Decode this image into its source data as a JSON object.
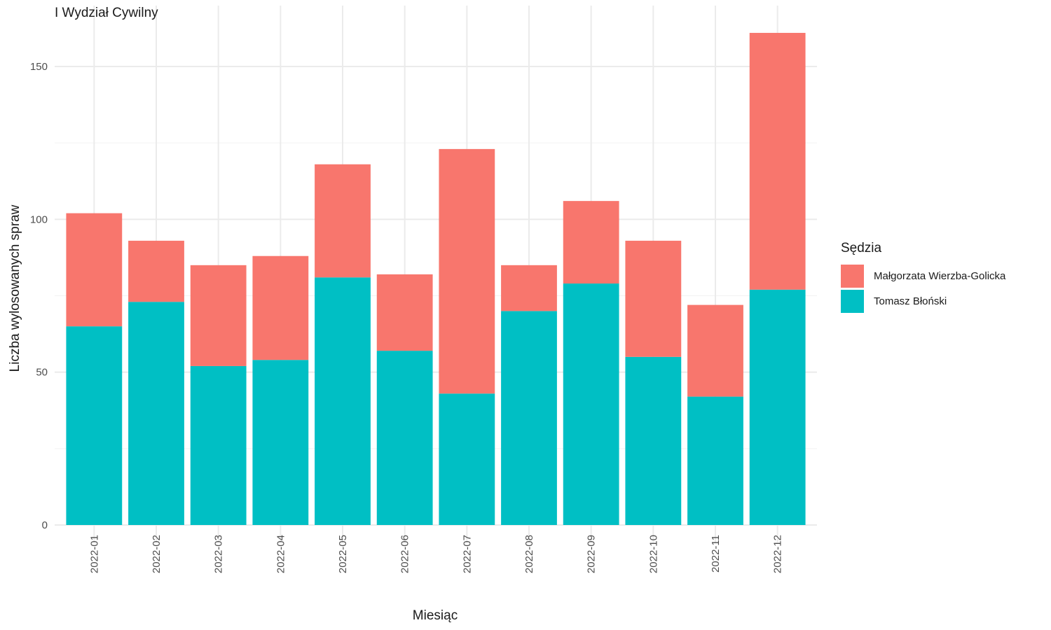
{
  "chart_data": {
    "type": "bar",
    "stacked": true,
    "title": "I Wydział Cywilny",
    "xlabel": "Miesiąc",
    "ylabel": "Liczba wylosowanych spraw",
    "ylim": [
      0,
      161
    ],
    "yticks": [
      0,
      50,
      100,
      150
    ],
    "categories": [
      "2022-01",
      "2022-02",
      "2022-03",
      "2022-04",
      "2022-05",
      "2022-06",
      "2022-07",
      "2022-08",
      "2022-09",
      "2022-10",
      "2022-11",
      "2022-12"
    ],
    "legend_title": "Sędzia",
    "legend_position": "right",
    "grid": true,
    "series": [
      {
        "name": "Tomasz Błoński",
        "color": "#00BFC4",
        "values": [
          65,
          73,
          52,
          54,
          81,
          57,
          43,
          70,
          79,
          55,
          42,
          77
        ]
      },
      {
        "name": "Małgorzata Wierzba-Golicka",
        "color": "#F8766D",
        "values": [
          37,
          20,
          33,
          34,
          37,
          25,
          80,
          15,
          27,
          38,
          30,
          84
        ]
      }
    ],
    "legend_order": [
      1,
      0
    ]
  }
}
